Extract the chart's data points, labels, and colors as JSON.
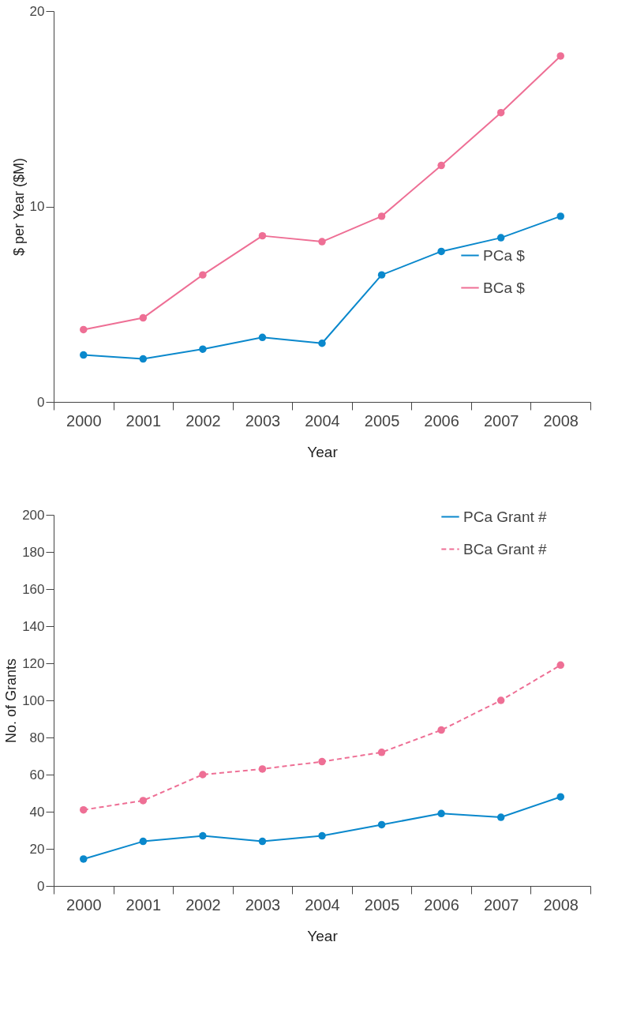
{
  "chart_data": [
    {
      "type": "line",
      "xlabel": "Year",
      "ylabel": "$ per Year ($M)",
      "categories": [
        "2000",
        "2001",
        "2002",
        "2003",
        "2004",
        "2005",
        "2006",
        "2007",
        "2008"
      ],
      "series": [
        {
          "name": "PCa $",
          "color": "#0a88cc",
          "values": [
            2.4,
            2.2,
            2.7,
            3.3,
            3.0,
            6.5,
            7.7,
            8.4,
            9.5
          ]
        },
        {
          "name": "BCa $",
          "color": "#ee6f95",
          "values": [
            3.7,
            4.3,
            6.5,
            8.5,
            8.2,
            9.5,
            12.1,
            14.8,
            17.7
          ]
        }
      ],
      "ylim": [
        0,
        20
      ],
      "yticks": [
        0,
        10,
        20
      ],
      "grid": false,
      "legend": "right",
      "marker": "circle",
      "line_style": "solid"
    },
    {
      "type": "line",
      "xlabel": "Year",
      "ylabel": "No. of Grants",
      "categories": [
        "2000",
        "2001",
        "2002",
        "2003",
        "2004",
        "2005",
        "2006",
        "2007",
        "2008"
      ],
      "series": [
        {
          "name": "PCa Grant #",
          "color": "#0a88cc",
          "values": [
            14.5,
            24,
            27,
            24,
            27,
            33,
            39,
            37,
            48
          ]
        },
        {
          "name": "BCa Grant #",
          "color": "#ee6f95",
          "values": [
            41,
            46,
            60,
            63,
            67,
            72,
            84,
            100,
            119
          ],
          "line_style": "dashed"
        }
      ],
      "ylim": [
        0,
        200
      ],
      "yticks": [
        0,
        20,
        40,
        60,
        80,
        100,
        120,
        140,
        160,
        180,
        200
      ],
      "grid": false,
      "legend": "top right",
      "marker": "circle",
      "line_style": "solid"
    }
  ]
}
